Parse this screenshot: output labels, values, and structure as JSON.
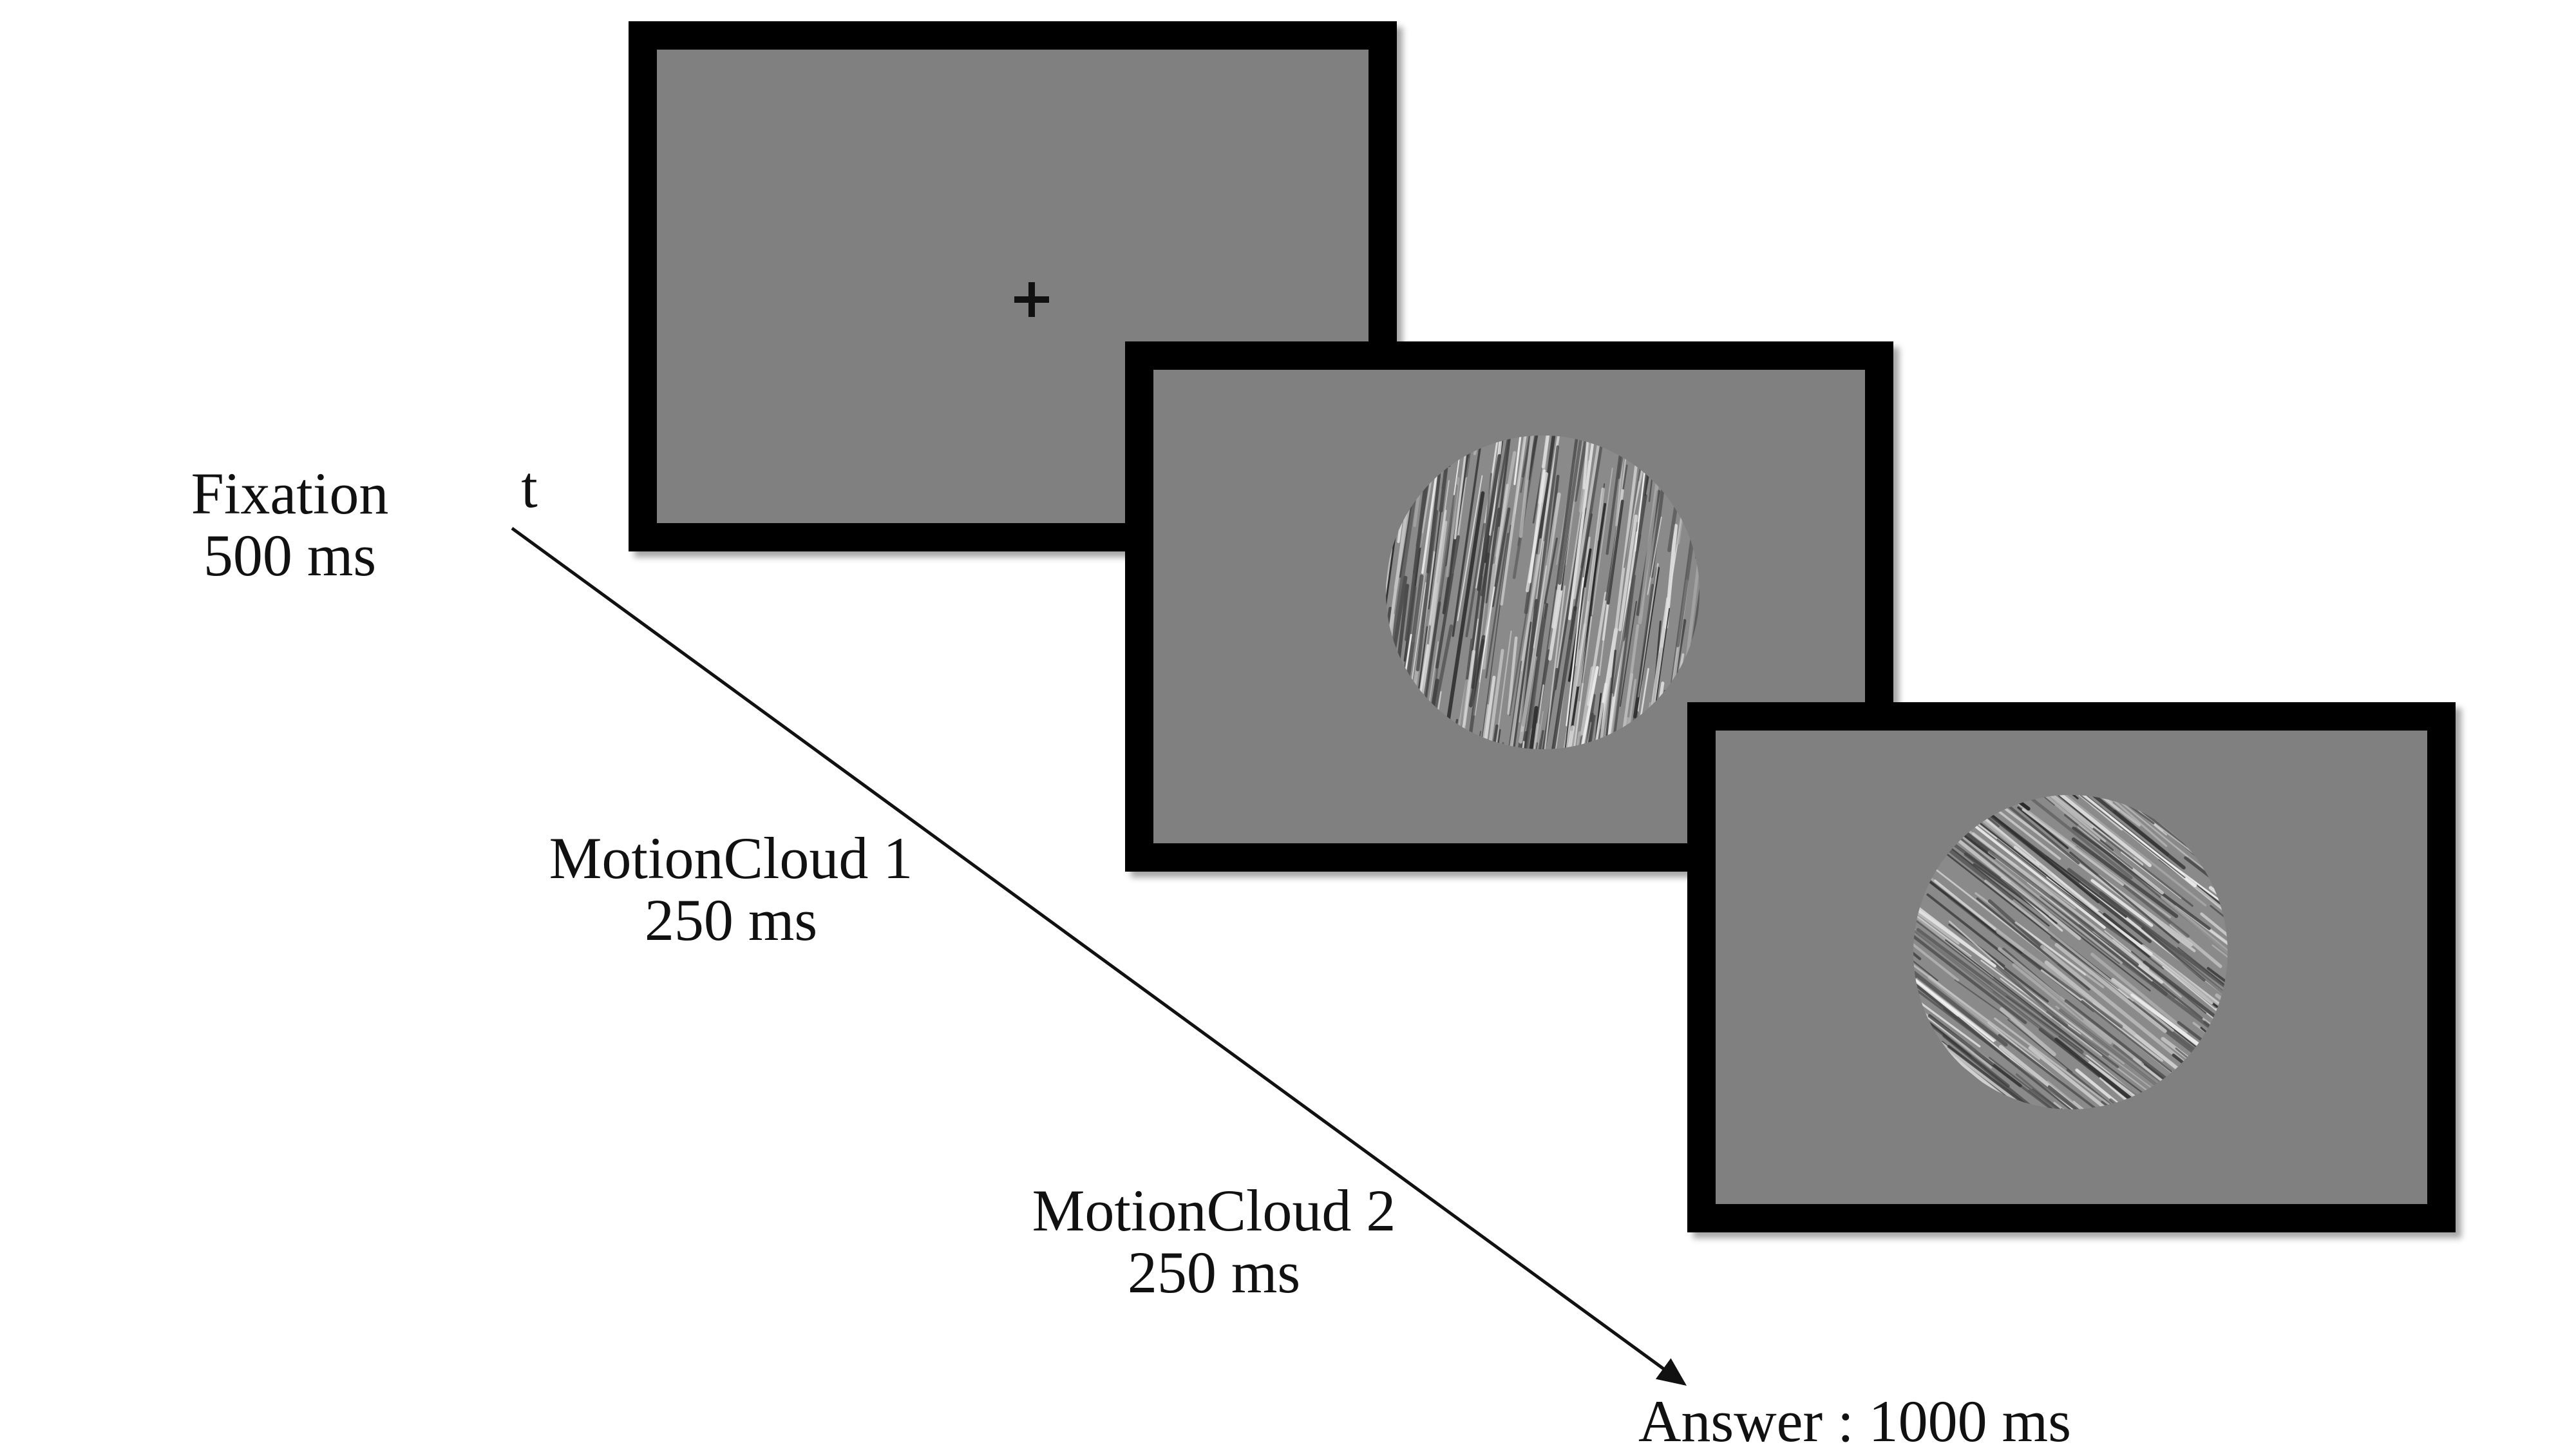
{
  "colors": {
    "background": "#ffffff",
    "screen_frame": "#000000",
    "screen_fill": "#808080",
    "cross": "#111111",
    "axis": "#111111",
    "text": "#111111"
  },
  "axis": {
    "label": "t"
  },
  "stages": [
    {
      "name_line": "Fixation",
      "duration_line": "500 ms",
      "content": "fixation-cross"
    },
    {
      "name_line": "MotionCloud 1",
      "duration_line": "250 ms",
      "content": "motion-cloud-near-vertical"
    },
    {
      "name_line": "MotionCloud 2",
      "duration_line": "250 ms",
      "content": "motion-cloud-oblique"
    }
  ],
  "answer": {
    "label": "Answer : 1000 ms"
  }
}
